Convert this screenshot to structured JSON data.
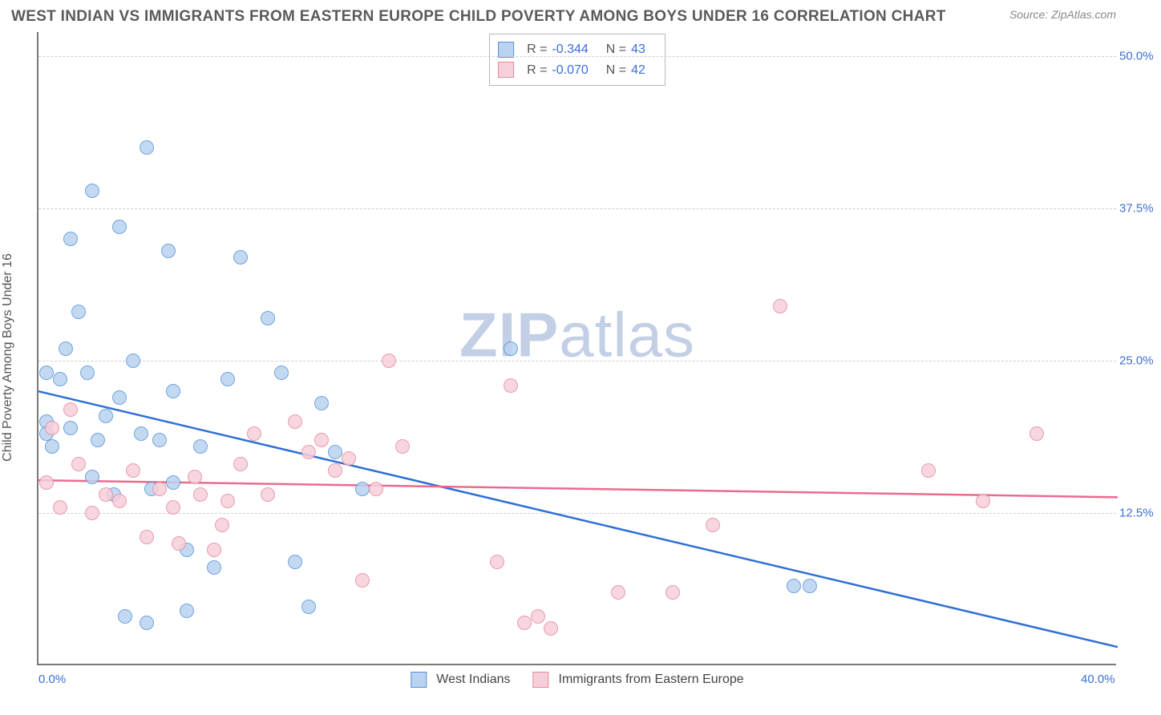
{
  "header": {
    "title": "WEST INDIAN VS IMMIGRANTS FROM EASTERN EUROPE CHILD POVERTY AMONG BOYS UNDER 16 CORRELATION CHART",
    "source_prefix": "Source: ",
    "source_name": "ZipAtlas.com"
  },
  "chart": {
    "type": "scatter",
    "ylabel": "Child Poverty Among Boys Under 16",
    "xlim": [
      0,
      40
    ],
    "ylim": [
      0,
      52
    ],
    "xtick_positions": [
      0,
      40
    ],
    "xtick_labels": [
      "0.0%",
      "40.0%"
    ],
    "ytick_positions": [
      12.5,
      25.0,
      37.5,
      50.0
    ],
    "ytick_labels": [
      "12.5%",
      "25.0%",
      "37.5%",
      "50.0%"
    ],
    "grid_color": "#cfcfcf",
    "axis_color": "#7a7a7a",
    "tick_label_color": "#3a6fd8",
    "background_color": "#ffffff",
    "marker_radius": 9,
    "marker_stroke_width": 1.5,
    "watermark_text_bold": "ZIP",
    "watermark_text_rest": "atlas",
    "watermark_color": "#aebfdd",
    "series": [
      {
        "id": "west_indians",
        "label": "West Indians",
        "fill_color": "#b9d3f0",
        "stroke_color": "#5a93d6",
        "line_color": "#2e6fd6",
        "r_value": "-0.344",
        "n_value": "43",
        "trend": {
          "x1": 0,
          "y1": 22.5,
          "x2": 40,
          "y2": 1.5
        },
        "points": [
          {
            "x": 0.3,
            "y": 20.0
          },
          {
            "x": 0.3,
            "y": 19.0
          },
          {
            "x": 0.3,
            "y": 24.0
          },
          {
            "x": 0.5,
            "y": 18.0
          },
          {
            "x": 0.8,
            "y": 23.5
          },
          {
            "x": 1.0,
            "y": 26.0
          },
          {
            "x": 1.2,
            "y": 19.5
          },
          {
            "x": 1.2,
            "y": 35.0
          },
          {
            "x": 1.5,
            "y": 29.0
          },
          {
            "x": 1.8,
            "y": 24.0
          },
          {
            "x": 2.0,
            "y": 39.0
          },
          {
            "x": 2.0,
            "y": 15.5
          },
          {
            "x": 2.2,
            "y": 18.5
          },
          {
            "x": 2.5,
            "y": 20.5
          },
          {
            "x": 2.8,
            "y": 14.0
          },
          {
            "x": 3.0,
            "y": 36.0
          },
          {
            "x": 3.0,
            "y": 22.0
          },
          {
            "x": 3.2,
            "y": 4.0
          },
          {
            "x": 3.5,
            "y": 25.0
          },
          {
            "x": 3.8,
            "y": 19.0
          },
          {
            "x": 4.0,
            "y": 42.5
          },
          {
            "x": 4.2,
            "y": 14.5
          },
          {
            "x": 4.5,
            "y": 18.5
          },
          {
            "x": 4.8,
            "y": 34.0
          },
          {
            "x": 5.0,
            "y": 22.5
          },
          {
            "x": 5.0,
            "y": 15.0
          },
          {
            "x": 5.5,
            "y": 9.5
          },
          {
            "x": 5.5,
            "y": 4.5
          },
          {
            "x": 6.0,
            "y": 18.0
          },
          {
            "x": 6.5,
            "y": 8.0
          },
          {
            "x": 7.0,
            "y": 23.5
          },
          {
            "x": 7.5,
            "y": 33.5
          },
          {
            "x": 8.5,
            "y": 28.5
          },
          {
            "x": 9.0,
            "y": 24.0
          },
          {
            "x": 9.5,
            "y": 8.5
          },
          {
            "x": 10.0,
            "y": 4.8
          },
          {
            "x": 10.5,
            "y": 21.5
          },
          {
            "x": 11.0,
            "y": 17.5
          },
          {
            "x": 12.0,
            "y": 14.5
          },
          {
            "x": 17.5,
            "y": 26.0
          },
          {
            "x": 28.0,
            "y": 6.5
          },
          {
            "x": 28.6,
            "y": 6.5
          },
          {
            "x": 4.0,
            "y": 3.5
          }
        ]
      },
      {
        "id": "eastern_europe",
        "label": "Immigrants from Eastern Europe",
        "fill_color": "#f7cfd9",
        "stroke_color": "#e48ba2",
        "line_color": "#e96b8f",
        "r_value": "-0.070",
        "n_value": "42",
        "trend": {
          "x1": 0,
          "y1": 15.2,
          "x2": 40,
          "y2": 13.8
        },
        "points": [
          {
            "x": 0.3,
            "y": 15.0
          },
          {
            "x": 0.5,
            "y": 19.5
          },
          {
            "x": 0.8,
            "y": 13.0
          },
          {
            "x": 1.2,
            "y": 21.0
          },
          {
            "x": 1.5,
            "y": 16.5
          },
          {
            "x": 2.0,
            "y": 12.5
          },
          {
            "x": 2.5,
            "y": 14.0
          },
          {
            "x": 3.0,
            "y": 13.5
          },
          {
            "x": 3.5,
            "y": 16.0
          },
          {
            "x": 4.0,
            "y": 10.5
          },
          {
            "x": 4.5,
            "y": 14.5
          },
          {
            "x": 5.0,
            "y": 13.0
          },
          {
            "x": 5.2,
            "y": 10.0
          },
          {
            "x": 5.8,
            "y": 15.5
          },
          {
            "x": 6.0,
            "y": 14.0
          },
          {
            "x": 6.5,
            "y": 9.5
          },
          {
            "x": 7.0,
            "y": 13.5
          },
          {
            "x": 7.5,
            "y": 16.5
          },
          {
            "x": 8.0,
            "y": 19.0
          },
          {
            "x": 8.5,
            "y": 14.0
          },
          {
            "x": 9.5,
            "y": 20.0
          },
          {
            "x": 10.0,
            "y": 17.5
          },
          {
            "x": 10.5,
            "y": 18.5
          },
          {
            "x": 11.0,
            "y": 16.0
          },
          {
            "x": 11.5,
            "y": 17.0
          },
          {
            "x": 12.0,
            "y": 7.0
          },
          {
            "x": 13.0,
            "y": 25.0
          },
          {
            "x": 13.5,
            "y": 18.0
          },
          {
            "x": 17.0,
            "y": 8.5
          },
          {
            "x": 17.5,
            "y": 23.0
          },
          {
            "x": 18.0,
            "y": 3.5
          },
          {
            "x": 18.5,
            "y": 4.0
          },
          {
            "x": 19.0,
            "y": 3.0
          },
          {
            "x": 21.5,
            "y": 6.0
          },
          {
            "x": 23.5,
            "y": 6.0
          },
          {
            "x": 25.0,
            "y": 11.5
          },
          {
            "x": 27.5,
            "y": 29.5
          },
          {
            "x": 33.0,
            "y": 16.0
          },
          {
            "x": 35.0,
            "y": 13.5
          },
          {
            "x": 37.0,
            "y": 19.0
          },
          {
            "x": 12.5,
            "y": 14.5
          },
          {
            "x": 6.8,
            "y": 11.5
          }
        ]
      }
    ]
  }
}
